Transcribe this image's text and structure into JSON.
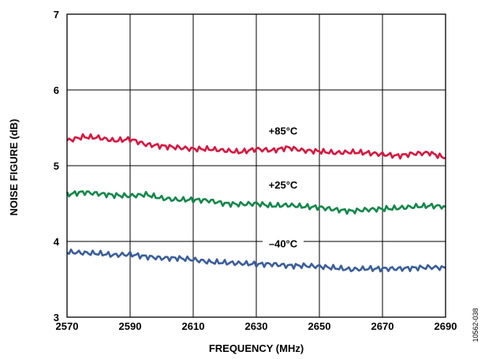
{
  "chart_data": {
    "type": "line",
    "xlabel": "FREQUENCY (MHz)",
    "ylabel": "NOISE FIGURE (dB)",
    "xlim": [
      2570,
      2690
    ],
    "ylim": [
      3,
      7
    ],
    "xticks": [
      2570,
      2590,
      2610,
      2630,
      2650,
      2670,
      2690
    ],
    "yticks": [
      3,
      4,
      5,
      6,
      7
    ],
    "xtick_labels": [
      "2570",
      "2590",
      "2610",
      "2630",
      "2650",
      "2670",
      "2690"
    ],
    "ytick_labels": [
      "3",
      "4",
      "5",
      "6",
      "7"
    ],
    "grid": true,
    "x": [
      2570,
      2575,
      2580,
      2585,
      2590,
      2595,
      2600,
      2605,
      2610,
      2615,
      2620,
      2625,
      2630,
      2635,
      2640,
      2645,
      2650,
      2655,
      2660,
      2665,
      2670,
      2675,
      2680,
      2685,
      2690
    ],
    "series": [
      {
        "name": "+85°C",
        "color": "#d9163f",
        "values": [
          5.33,
          5.38,
          5.37,
          5.33,
          5.35,
          5.28,
          5.26,
          5.24,
          5.22,
          5.22,
          5.2,
          5.18,
          5.22,
          5.2,
          5.24,
          5.2,
          5.19,
          5.17,
          5.18,
          5.17,
          5.15,
          5.13,
          5.16,
          5.17,
          5.1
        ]
      },
      {
        "name": "+25°C",
        "color": "#13874a",
        "values": [
          4.62,
          4.65,
          4.63,
          4.61,
          4.6,
          4.62,
          4.57,
          4.55,
          4.55,
          4.54,
          4.5,
          4.49,
          4.5,
          4.47,
          4.48,
          4.46,
          4.45,
          4.42,
          4.4,
          4.42,
          4.43,
          4.44,
          4.46,
          4.47,
          4.46
        ]
      },
      {
        "name": "–40°C",
        "color": "#3a5e9a",
        "values": [
          3.86,
          3.85,
          3.84,
          3.82,
          3.83,
          3.8,
          3.78,
          3.78,
          3.76,
          3.73,
          3.72,
          3.71,
          3.7,
          3.7,
          3.68,
          3.68,
          3.67,
          3.65,
          3.63,
          3.64,
          3.64,
          3.64,
          3.65,
          3.66,
          3.65
        ]
      }
    ],
    "annotations": [
      "+85°C",
      "+25°C",
      "–40°C"
    ]
  },
  "figure_id": "10562-038"
}
